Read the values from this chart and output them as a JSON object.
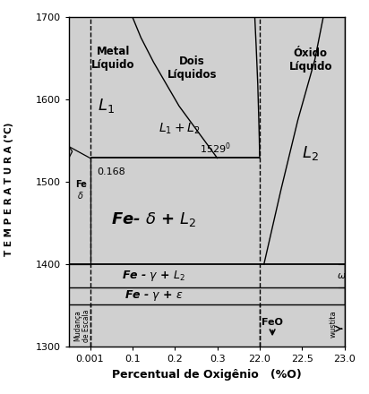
{
  "title": "",
  "xlabel": "Percentual de Oxigênio   (%O)",
  "ylabel": "T E M P E R A T U R A (°C)",
  "bg_color": "#d0d0d0",
  "fig_bg": "#ffffff",
  "ylim": [
    1300,
    1700
  ],
  "xticks_real": [
    0.001,
    0.1,
    0.2,
    0.3,
    22.0,
    22.5,
    23.0
  ],
  "xtick_labels": [
    "0.001",
    "0.1",
    "0.2",
    "0.3",
    "22.0",
    "22.5",
    "23.0"
  ],
  "yticks": [
    1300,
    1400,
    1500,
    1600,
    1700
  ]
}
